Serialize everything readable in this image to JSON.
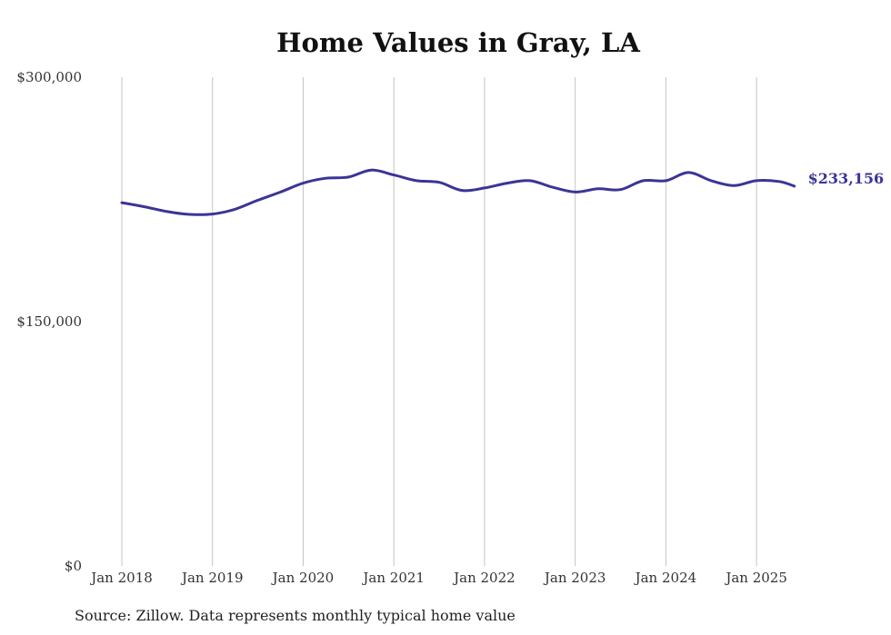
{
  "chart_data": {
    "type": "line",
    "title": "Home Values in Gray, LA",
    "xlabel": "",
    "ylabel": "",
    "ylim": [
      0,
      300000
    ],
    "y_ticks": [
      {
        "value": 0,
        "label": "$0"
      },
      {
        "value": 150000,
        "label": "$150,000"
      },
      {
        "value": 300000,
        "label": "$300,000"
      }
    ],
    "x_ticks": [
      {
        "year": 2018,
        "label": "Jan 2018"
      },
      {
        "year": 2019,
        "label": "Jan 2019"
      },
      {
        "year": 2020,
        "label": "Jan 2020"
      },
      {
        "year": 2021,
        "label": "Jan 2021"
      },
      {
        "year": 2022,
        "label": "Jan 2022"
      },
      {
        "year": 2023,
        "label": "Jan 2023"
      },
      {
        "year": 2024,
        "label": "Jan 2024"
      },
      {
        "year": 2025,
        "label": "Jan 2025"
      }
    ],
    "x_range": [
      2018,
      2025.42
    ],
    "grid": "vertical",
    "line_color": "#3a3596",
    "end_label": "$233,156",
    "series": [
      {
        "x": [
          "2018-01",
          "2018-04",
          "2018-07",
          "2018-10",
          "2019-01",
          "2019-04",
          "2019-07",
          "2019-10",
          "2020-01",
          "2020-04",
          "2020-07",
          "2020-10",
          "2021-01",
          "2021-04",
          "2021-07",
          "2021-10",
          "2022-01",
          "2022-04",
          "2022-07",
          "2022-10",
          "2023-01",
          "2023-04",
          "2023-07",
          "2023-10",
          "2024-01",
          "2024-04",
          "2024-07",
          "2024-10",
          "2025-01",
          "2025-04",
          "2025-06"
        ],
        "y": [
          223000,
          220500,
          217500,
          215800,
          216000,
          219000,
          224500,
          229500,
          235000,
          238000,
          238700,
          243000,
          240000,
          236500,
          235500,
          230500,
          232000,
          235000,
          236500,
          232500,
          229500,
          231500,
          231000,
          236500,
          236500,
          241500,
          236500,
          233500,
          236500,
          236000,
          233156
        ]
      }
    ]
  },
  "source": "Source: Zillow. Data represents monthly typical home value"
}
